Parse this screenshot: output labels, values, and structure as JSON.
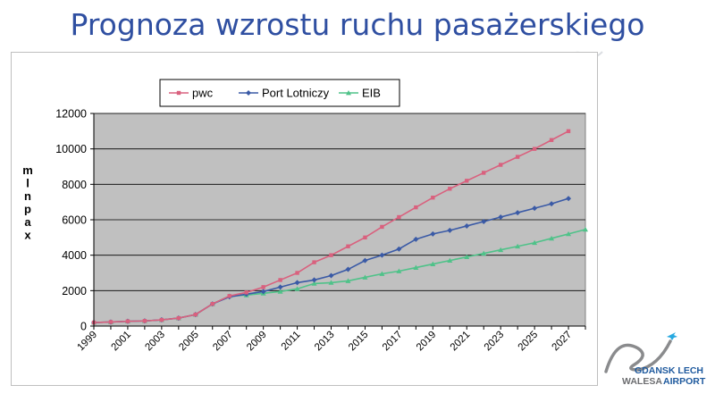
{
  "slide": {
    "title": "Prognoza wzrostu ruchu pasażerskiego"
  },
  "logo": {
    "line1": "GDANSK LECH",
    "line2": "WALESA",
    "line3": "AIRPORT",
    "colors": {
      "blue": "#1f5a9e",
      "gray": "#6d6e71",
      "cyan": "#28a9e0"
    }
  },
  "chart_data": {
    "type": "line",
    "title": "",
    "ylabel": "mln pax",
    "xlabel": "",
    "ylim": [
      0,
      12000
    ],
    "yticks": [
      0,
      2000,
      4000,
      6000,
      8000,
      10000,
      12000
    ],
    "x": [
      1999,
      2000,
      2001,
      2002,
      2003,
      2004,
      2005,
      2006,
      2007,
      2008,
      2009,
      2010,
      2011,
      2012,
      2013,
      2014,
      2015,
      2016,
      2017,
      2018,
      2019,
      2020,
      2021,
      2022,
      2023,
      2024,
      2025,
      2026,
      2027,
      2028
    ],
    "xtick_labels": [
      "1999",
      "2001",
      "2003",
      "2005",
      "2007",
      "2009",
      "2011",
      "2013",
      "2015",
      "2017",
      "2019",
      "2021",
      "2023",
      "2025",
      "2027"
    ],
    "grid": true,
    "plot_background": "#c0c0c0",
    "legend_position": "top",
    "series": [
      {
        "name": "pwc",
        "color": "#d9617e",
        "marker": "square",
        "values": [
          200,
          230,
          270,
          290,
          350,
          450,
          650,
          1250,
          1700,
          1900,
          2200,
          2600,
          3000,
          3600,
          4000,
          4500,
          5000,
          5600,
          6150,
          6700,
          7250,
          7750,
          8200,
          8650,
          9100,
          9550,
          10000,
          10500,
          11000,
          null
        ]
      },
      {
        "name": "Port Lotniczy",
        "color": "#3a5aa6",
        "marker": "diamond",
        "values": [
          200,
          230,
          270,
          290,
          350,
          450,
          650,
          1250,
          1650,
          1800,
          1950,
          2200,
          2450,
          2600,
          2850,
          3200,
          3700,
          4000,
          4350,
          4900,
          5200,
          5400,
          5650,
          5900,
          6150,
          6400,
          6650,
          6900,
          7200,
          null
        ]
      },
      {
        "name": "EIB",
        "color": "#4fc289",
        "marker": "triangle",
        "values": [
          200,
          230,
          270,
          290,
          350,
          450,
          650,
          1250,
          1700,
          1750,
          1850,
          1950,
          2100,
          2400,
          2450,
          2550,
          2750,
          2950,
          3100,
          3300,
          3500,
          3700,
          3900,
          4100,
          4300,
          4500,
          4700,
          4950,
          5200,
          5450
        ]
      }
    ]
  }
}
